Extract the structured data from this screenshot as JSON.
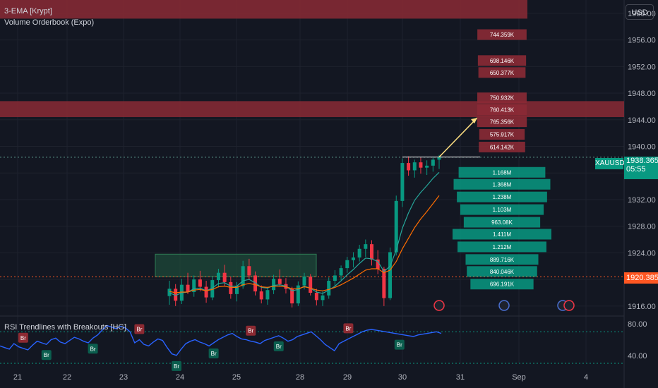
{
  "header": {
    "indicator_1": "3-EMA [Krypt]",
    "indicator_2": "Volume Orderbook (Expo)",
    "currency": "USD"
  },
  "symbol": {
    "name": "XAUUSD",
    "price": "1938.365",
    "countdown": "05:55",
    "level_price": "1920.385"
  },
  "colors": {
    "background": "#131722",
    "up": "#089981",
    "down": "#f23645",
    "ema_fast": "#26a69a",
    "ema_slow": "#ff6d00",
    "rsi": "#2962ff",
    "zone_red": "#8b2a35",
    "zone_green": "#1e4d3a",
    "level_line": "#ff5722"
  },
  "chart_data": [
    {
      "type": "candlestick",
      "title": "",
      "x_ticks": [
        "21",
        "22",
        "23",
        "24",
        "25",
        "28",
        "29",
        "30",
        "31",
        "Sep",
        "4"
      ],
      "y_ticks": [
        1916,
        1920,
        1924,
        1928,
        1932,
        1936,
        1940,
        1944,
        1948,
        1952,
        1956,
        1960
      ],
      "ylim": [
        1914.5,
        1962
      ],
      "grid": true,
      "zones": [
        {
          "kind": "resistance",
          "from": 1959.2,
          "to": 1962.0,
          "x_from": "21",
          "x_to": "Sep"
        },
        {
          "kind": "resistance",
          "from": 1944.4,
          "to": 1946.8,
          "x_from": "21",
          "x_to": "31"
        },
        {
          "kind": "support",
          "from": 1920.4,
          "to": 1923.8,
          "x_from": "24",
          "x_to": "28"
        }
      ],
      "horizontal_levels": [
        {
          "price": 1920.385,
          "style": "dotted"
        },
        {
          "price": 1938.365,
          "style": "dotted"
        }
      ],
      "projection_arrow": {
        "from_price": 1938.4,
        "to_price": 1944.3,
        "from_x": "30",
        "to_x": "31"
      },
      "candles": [
        [
          1917.5,
          1919.8,
          1916.2,
          1918.6
        ],
        [
          1918.6,
          1919.3,
          1916.0,
          1916.8
        ],
        [
          1916.8,
          1920.1,
          1916.3,
          1919.2
        ],
        [
          1919.2,
          1921.0,
          1917.8,
          1918.1
        ],
        [
          1918.1,
          1920.6,
          1917.4,
          1920.0
        ],
        [
          1920.0,
          1921.3,
          1918.2,
          1918.9
        ],
        [
          1918.9,
          1919.8,
          1916.5,
          1917.3
        ],
        [
          1917.3,
          1920.5,
          1916.9,
          1919.9
        ],
        [
          1919.9,
          1921.6,
          1918.8,
          1921.0
        ],
        [
          1921.0,
          1922.2,
          1919.0,
          1919.6
        ],
        [
          1919.6,
          1920.4,
          1917.1,
          1917.8
        ],
        [
          1917.8,
          1919.6,
          1916.7,
          1919.0
        ],
        [
          1919.0,
          1922.8,
          1918.6,
          1922.0
        ],
        [
          1922.0,
          1923.1,
          1919.9,
          1920.6
        ],
        [
          1920.6,
          1921.2,
          1917.6,
          1918.2
        ],
        [
          1918.2,
          1919.1,
          1916.4,
          1917.0
        ],
        [
          1917.0,
          1918.9,
          1916.2,
          1918.4
        ],
        [
          1918.4,
          1920.7,
          1917.8,
          1920.1
        ],
        [
          1920.1,
          1921.5,
          1918.9,
          1919.3
        ],
        [
          1919.3,
          1920.2,
          1917.9,
          1918.6
        ],
        [
          1918.6,
          1918.9,
          1915.8,
          1916.4
        ],
        [
          1916.4,
          1919.7,
          1916.0,
          1919.1
        ],
        [
          1919.1,
          1921.0,
          1918.5,
          1920.4
        ],
        [
          1920.4,
          1920.8,
          1917.6,
          1918.0
        ],
        [
          1918.0,
          1918.6,
          1916.1,
          1916.9
        ],
        [
          1916.9,
          1918.2,
          1916.0,
          1917.6
        ],
        [
          1917.6,
          1920.3,
          1917.1,
          1919.8
        ],
        [
          1919.8,
          1921.4,
          1919.0,
          1920.6
        ],
        [
          1920.6,
          1922.1,
          1919.9,
          1921.7
        ],
        [
          1921.7,
          1923.4,
          1921.0,
          1922.9
        ],
        [
          1922.9,
          1924.1,
          1921.8,
          1923.3
        ],
        [
          1923.3,
          1925.2,
          1922.7,
          1924.6
        ],
        [
          1924.6,
          1926.0,
          1923.4,
          1925.3
        ],
        [
          1925.3,
          1925.9,
          1922.1,
          1923.0
        ],
        [
          1923.0,
          1924.4,
          1920.8,
          1921.6
        ],
        [
          1921.6,
          1921.9,
          1916.0,
          1917.2
        ],
        [
          1917.2,
          1924.8,
          1916.9,
          1924.1
        ],
        [
          1924.1,
          1932.6,
          1923.6,
          1931.8
        ],
        [
          1931.8,
          1938.2,
          1930.9,
          1937.5
        ],
        [
          1937.5,
          1938.5,
          1935.6,
          1936.4
        ],
        [
          1936.4,
          1938.0,
          1935.3,
          1937.6
        ],
        [
          1937.6,
          1938.3,
          1935.9,
          1936.8
        ],
        [
          1936.8,
          1937.9,
          1935.7,
          1937.1
        ],
        [
          1937.1,
          1938.4,
          1936.2,
          1938.0
        ],
        [
          1938.0,
          1938.7,
          1936.6,
          1938.4
        ]
      ],
      "ema_fast": [
        1918.0,
        1917.6,
        1918.0,
        1918.1,
        1918.6,
        1918.7,
        1918.3,
        1918.7,
        1919.4,
        1919.5,
        1919.0,
        1919.0,
        1919.8,
        1920.0,
        1919.5,
        1918.8,
        1918.7,
        1919.1,
        1919.2,
        1919.0,
        1918.3,
        1918.5,
        1919.0,
        1918.7,
        1918.1,
        1917.9,
        1918.4,
        1919.0,
        1919.8,
        1920.7,
        1921.5,
        1922.4,
        1923.2,
        1923.1,
        1922.7,
        1921.2,
        1922.0,
        1924.4,
        1927.7,
        1930.0,
        1931.9,
        1933.1,
        1934.1,
        1935.2,
        1936.1
      ],
      "ema_slow": [
        1918.2,
        1918.0,
        1918.1,
        1918.1,
        1918.4,
        1918.5,
        1918.3,
        1918.5,
        1918.9,
        1919.0,
        1918.8,
        1918.8,
        1919.2,
        1919.4,
        1919.2,
        1918.9,
        1918.8,
        1919.0,
        1919.0,
        1918.9,
        1918.6,
        1918.6,
        1918.9,
        1918.7,
        1918.4,
        1918.3,
        1918.5,
        1918.8,
        1919.2,
        1919.7,
        1920.2,
        1920.8,
        1921.4,
        1921.6,
        1921.6,
        1921.0,
        1921.4,
        1922.7,
        1924.6,
        1926.2,
        1927.8,
        1929.1,
        1930.2,
        1931.4,
        1932.6
      ]
    },
    {
      "type": "bar",
      "title": "",
      "orientation": "horizontal",
      "bars": [
        {
          "price": 1956.8,
          "value": 744.359,
          "label": "744.359K",
          "side": "sell"
        },
        {
          "price": 1952.9,
          "value": 698.146,
          "label": "698.146K",
          "side": "sell"
        },
        {
          "price": 1951.1,
          "value": 650.377,
          "label": "650.377K",
          "side": "sell"
        },
        {
          "price": 1947.3,
          "value": 750.932,
          "label": "750.932K",
          "side": "sell"
        },
        {
          "price": 1945.5,
          "value": 760.413,
          "label": "760.413K",
          "side": "sell"
        },
        {
          "price": 1943.7,
          "value": 765.356,
          "label": "765.356K",
          "side": "sell"
        },
        {
          "price": 1941.8,
          "value": 575.917,
          "label": "575.917K",
          "side": "sell"
        },
        {
          "price": 1939.9,
          "value": 614.142,
          "label": "614.142K",
          "side": "sell"
        },
        {
          "price": 1936.1,
          "value": 1168,
          "label": "1.168M",
          "side": "buy"
        },
        {
          "price": 1934.3,
          "value": 1368,
          "label": "1.368M",
          "side": "buy"
        },
        {
          "price": 1932.4,
          "value": 1238,
          "label": "1.238M",
          "side": "buy"
        },
        {
          "price": 1930.5,
          "value": 1103,
          "label": "1.103M",
          "side": "buy"
        },
        {
          "price": 1928.6,
          "value": 963.08,
          "label": "963.08K",
          "side": "buy"
        },
        {
          "price": 1926.8,
          "value": 1411,
          "label": "1.411M",
          "side": "buy"
        },
        {
          "price": 1924.9,
          "value": 1212,
          "label": "1.212M",
          "side": "buy"
        },
        {
          "price": 1923.0,
          "value": 889.716,
          "label": "889.716K",
          "side": "buy"
        },
        {
          "price": 1921.2,
          "value": 840.046,
          "label": "840.046K",
          "side": "buy"
        },
        {
          "price": 1919.3,
          "value": 696.191,
          "label": "696.191K",
          "side": "buy"
        }
      ]
    },
    {
      "type": "line",
      "title": "RSI Trendlines with Breakouts [HG]",
      "y_ticks": [
        40,
        80
      ],
      "ylim": [
        30,
        90
      ],
      "levels": [
        70,
        30
      ],
      "values": [
        52,
        50,
        48,
        55,
        51,
        49,
        47,
        53,
        58,
        56,
        54,
        60,
        62,
        57,
        55,
        59,
        63,
        61,
        58,
        56,
        62,
        66,
        72,
        78,
        76,
        74,
        77,
        75,
        70,
        56,
        60,
        54,
        52,
        57,
        61,
        59,
        50,
        42,
        40,
        48,
        55,
        58,
        60,
        57,
        55,
        52,
        56,
        60,
        63,
        66,
        68,
        64,
        61,
        60,
        58,
        57,
        55,
        59,
        61,
        63,
        65,
        62,
        58,
        60,
        64,
        66,
        68,
        70,
        65,
        60,
        54,
        50,
        46,
        55,
        58,
        61,
        64,
        67,
        70,
        72,
        73,
        72,
        71,
        70,
        69,
        68,
        67,
        66,
        65,
        64,
        66,
        67,
        68,
        69,
        70,
        68
      ],
      "markers": [
        {
          "label": "Br",
          "side": "down",
          "index": 5
        },
        {
          "label": "Br",
          "side": "up",
          "index": 10
        },
        {
          "label": "Br",
          "side": "up",
          "index": 20
        },
        {
          "label": "Br",
          "side": "down",
          "index": 30
        },
        {
          "label": "Br",
          "side": "up",
          "index": 38
        },
        {
          "label": "Br",
          "side": "up",
          "index": 46
        },
        {
          "label": "Br",
          "side": "down",
          "index": 54
        },
        {
          "label": "Br",
          "side": "up",
          "index": 60
        },
        {
          "label": "Br",
          "side": "down",
          "index": 75
        },
        {
          "label": "Br",
          "side": "up",
          "index": 86
        }
      ]
    }
  ]
}
